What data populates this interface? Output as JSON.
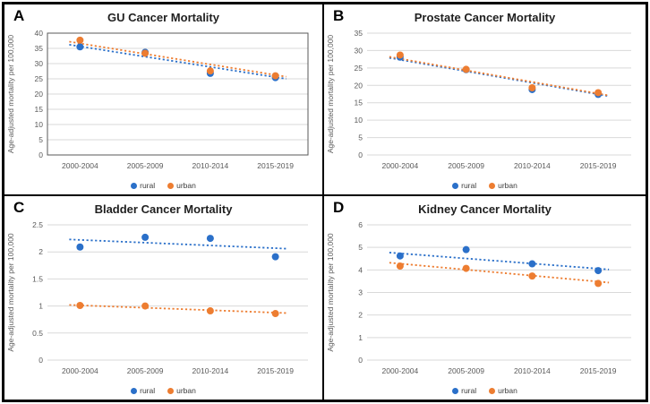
{
  "figure": {
    "description_labels": [
      "A",
      "B",
      "C",
      "D"
    ],
    "legend_labels": [
      "rural",
      "urban"
    ],
    "colors": {
      "rural": "#2B70C9",
      "urban": "#ED7D31",
      "gridline": "#D9D9D9",
      "tick_text": "#595959",
      "border": "#000000"
    }
  },
  "chart_data": [
    {
      "type": "scatter",
      "letter": "A",
      "title": "GU Cancer Mortality",
      "ylabel": "Age-adjusted mortality per 100,000",
      "categories": [
        "2000-2004",
        "2005-2009",
        "2010-2014",
        "2015-2019"
      ],
      "yticks": [
        0,
        5,
        10,
        15,
        20,
        25,
        30,
        35,
        40
      ],
      "ylim": [
        0,
        40
      ],
      "plot_border": true,
      "grid": true,
      "legend_position": "bottom",
      "series": [
        {
          "name": "rural",
          "color": "#2B70C9",
          "marker": "circle",
          "values": [
            35.5,
            33.7,
            26.8,
            25.4
          ],
          "trendline": {
            "style": "dotted",
            "start": 36.2,
            "end": 25.0
          }
        },
        {
          "name": "urban",
          "color": "#ED7D31",
          "marker": "circle",
          "values": [
            37.7,
            33.4,
            27.6,
            26.0
          ],
          "trendline": {
            "style": "dotted",
            "start": 37.2,
            "end": 25.7
          }
        }
      ]
    },
    {
      "type": "scatter",
      "letter": "B",
      "title": "Prostate Cancer Mortality",
      "ylabel": "Age-adjusted mortality per 100,000",
      "categories": [
        "2000-2004",
        "2005-2009",
        "2010-2014",
        "2015-2019"
      ],
      "yticks": [
        0,
        5,
        10,
        15,
        20,
        25,
        30,
        35
      ],
      "ylim": [
        0,
        35
      ],
      "plot_border": false,
      "grid": true,
      "legend_position": "bottom",
      "series": [
        {
          "name": "rural",
          "color": "#2B70C9",
          "marker": "circle",
          "values": [
            28.1,
            24.5,
            18.8,
            17.4
          ],
          "trendline": {
            "style": "dotted",
            "start": 27.9,
            "end": 16.9
          }
        },
        {
          "name": "urban",
          "color": "#ED7D31",
          "marker": "circle",
          "values": [
            28.7,
            24.6,
            19.3,
            17.9
          ],
          "trendline": {
            "style": "dotted",
            "start": 28.2,
            "end": 17.1
          }
        }
      ]
    },
    {
      "type": "scatter",
      "letter": "C",
      "title": "Bladder Cancer Mortality",
      "ylabel": "Age-adjusted mortality per 100,000",
      "categories": [
        "2000-2004",
        "2005-2009",
        "2010-2014",
        "2015-2019"
      ],
      "yticks": [
        0,
        0.5,
        1,
        1.5,
        2,
        2.5
      ],
      "ylim": [
        0,
        2.5
      ],
      "plot_border": false,
      "grid": true,
      "legend_position": "bottom",
      "series": [
        {
          "name": "rural",
          "color": "#2B70C9",
          "marker": "circle",
          "values": [
            2.09,
            2.27,
            2.25,
            1.91
          ],
          "trendline": {
            "style": "dotted",
            "start": 2.23,
            "end": 2.06
          }
        },
        {
          "name": "urban",
          "color": "#ED7D31",
          "marker": "circle",
          "values": [
            1.01,
            1.0,
            0.91,
            0.86
          ],
          "trendline": {
            "style": "dotted",
            "start": 1.02,
            "end": 0.87
          }
        }
      ]
    },
    {
      "type": "scatter",
      "letter": "D",
      "title": "Kidney Cancer Mortality",
      "ylabel": "Age-adjusted mortality per 100,000",
      "categories": [
        "2000-2004",
        "2005-2009",
        "2010-2014",
        "2015-2019"
      ],
      "yticks": [
        0,
        1,
        2,
        3,
        4,
        5,
        6
      ],
      "ylim": [
        0,
        6
      ],
      "plot_border": false,
      "grid": true,
      "legend_position": "bottom",
      "series": [
        {
          "name": "rural",
          "color": "#2B70C9",
          "marker": "circle",
          "values": [
            4.62,
            4.9,
            4.27,
            3.97
          ],
          "trendline": {
            "style": "dotted",
            "start": 4.77,
            "end": 4.02
          }
        },
        {
          "name": "urban",
          "color": "#ED7D31",
          "marker": "circle",
          "values": [
            4.17,
            4.07,
            3.73,
            3.4
          ],
          "trendline": {
            "style": "dotted",
            "start": 4.32,
            "end": 3.44
          }
        }
      ]
    }
  ]
}
